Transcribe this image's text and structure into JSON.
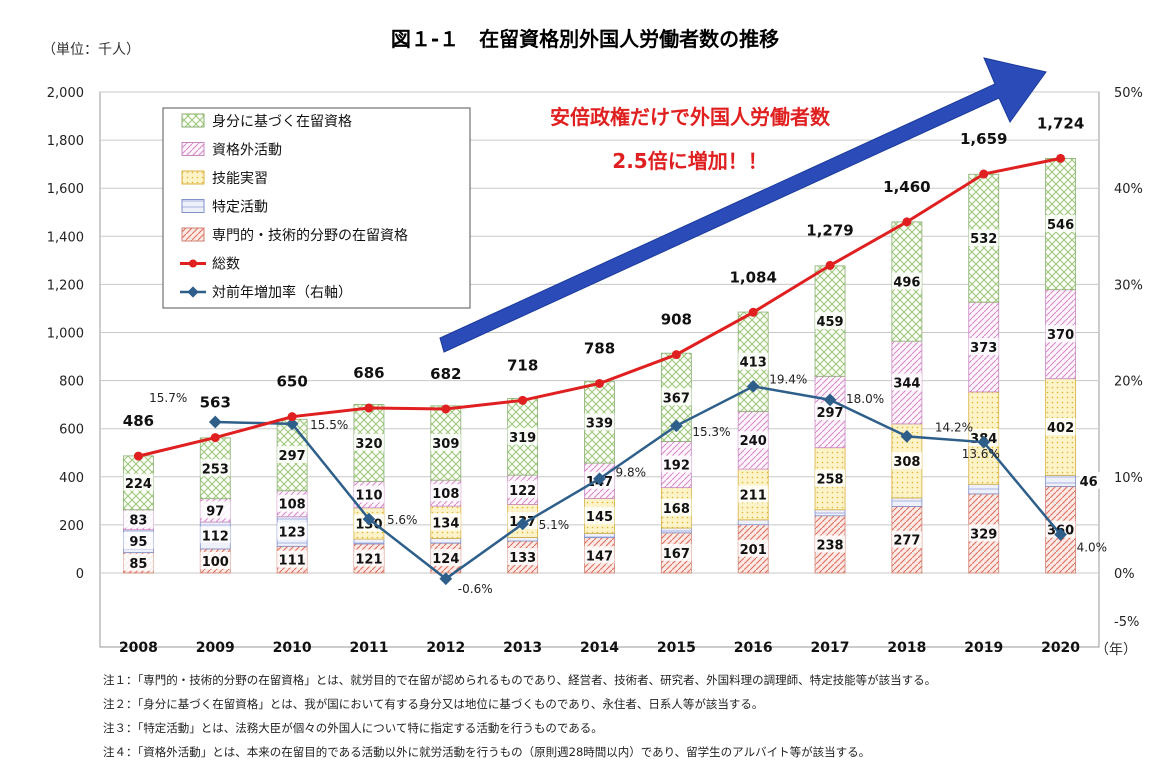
{
  "chart_data": {
    "type": "bar",
    "title": "図１-１　在留資格別外国人労働者数の推移",
    "unit_left": "（単位：千人）",
    "x_suffix": "（年）",
    "categories": [
      "2008",
      "2009",
      "2010",
      "2011",
      "2012",
      "2013",
      "2014",
      "2015",
      "2016",
      "2017",
      "2018",
      "2019",
      "2020"
    ],
    "ylim": [
      0,
      2000
    ],
    "y_ticks": [
      "0",
      "200",
      "400",
      "600",
      "800",
      "1,000",
      "1,200",
      "1,400",
      "1,600",
      "1,800",
      "2,000"
    ],
    "y2lim": [
      -5,
      50
    ],
    "y2_ticks": [
      "-5%",
      "0%",
      "10%",
      "20%",
      "30%",
      "40%",
      "50%"
    ],
    "stacked_series": [
      {
        "name": "専門的・技術的分野の在留資格",
        "color": "#e07060",
        "values": [
          85,
          100,
          111,
          121,
          124,
          133,
          147,
          167,
          201,
          238,
          277,
          329,
          360
        ],
        "labels": [
          "85",
          "100",
          "111",
          "121",
          "124",
          "133",
          "147",
          "167",
          "201",
          "238",
          "277",
          "329",
          "360"
        ]
      },
      {
        "name": "特定活動",
        "color": "#8090d0",
        "values": [
          95,
          112,
          123,
          20,
          20,
          15,
          18,
          20,
          20,
          25,
          35,
          40,
          46
        ],
        "labels": [
          "95",
          "112",
          "123",
          "",
          "",
          "",
          "",
          "",
          "",
          "",
          "",
          "",
          "46"
        ]
      },
      {
        "name": "技能実習",
        "color": "#e8c040",
        "values": [
          0,
          0,
          0,
          130,
          134,
          137,
          145,
          168,
          211,
          258,
          308,
          384,
          402
        ],
        "labels": [
          "",
          "",
          "",
          "130",
          "134",
          "137",
          "145",
          "168",
          "211",
          "258",
          "308",
          "384",
          "402"
        ]
      },
      {
        "name": "資格外活動",
        "color": "#d070c0",
        "values": [
          83,
          97,
          108,
          110,
          108,
          122,
          147,
          192,
          240,
          297,
          344,
          373,
          370
        ],
        "labels": [
          "83",
          "97",
          "108",
          "110",
          "108",
          "122",
          "147",
          "192",
          "240",
          "297",
          "344",
          "373",
          "370"
        ]
      },
      {
        "name": "身分に基づく在留資格",
        "color": "#90c070",
        "values": [
          224,
          253,
          297,
          320,
          309,
          319,
          339,
          367,
          413,
          459,
          496,
          532,
          546
        ],
        "labels": [
          "224",
          "253",
          "297",
          "320",
          "309",
          "319",
          "339",
          "367",
          "413",
          "459",
          "496",
          "532",
          "546"
        ]
      }
    ],
    "total_series": {
      "name": "総数",
      "color": "#e02020",
      "values": [
        486,
        563,
        650,
        686,
        682,
        718,
        788,
        908,
        1084,
        1279,
        1460,
        1659,
        1724
      ],
      "labels": [
        "486",
        "563",
        "650",
        "686",
        "682",
        "718",
        "788",
        "908",
        "1,084",
        "1,279",
        "1,460",
        "1,659",
        "1,724"
      ]
    },
    "rate_series": {
      "name": "対前年増加率（右軸）",
      "color": "#2e5f8a",
      "values": [
        null,
        15.7,
        15.5,
        5.6,
        -0.6,
        5.1,
        9.8,
        15.3,
        19.4,
        18.0,
        14.2,
        13.6,
        4.0
      ],
      "labels": [
        "",
        "15.7%",
        "15.5%",
        "5.6%",
        "-0.6%",
        "5.1%",
        "9.8%",
        "15.3%",
        "19.4%",
        "18.0%",
        "14.2%",
        "13.6%",
        "4.0%"
      ]
    },
    "annotation": {
      "line1": "安倍政権だけで外国人労働者数",
      "line2": "2.5倍に増加！！",
      "color": "#e02020",
      "arrow_color": "#2a4bb8"
    },
    "legend_placement": "top-left",
    "grid": true
  },
  "notes": [
    "注１：「専門的・技術的分野の在留資格」とは、就労目的で在留が認められるものであり、経営者、技術者、研究者、外国料理の調理師、特定技能等が該当する。",
    "注２：「身分に基づく在留資格」とは、我が国において有する身分又は地位に基づくものであり、永住者、日系人等が該当する。",
    "注３：「特定活動」とは、法務大臣が個々の外国人について特に指定する活動を行うものである。",
    "注４：「資格外活動」とは、本来の在留目的である活動以外に就労活動を行うもの（原則週28時間以内）であり、留学生のアルバイト等が該当する。"
  ]
}
